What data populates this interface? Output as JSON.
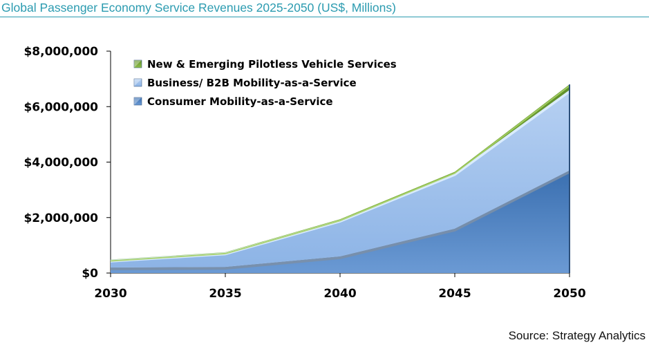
{
  "title": "Global Passenger Economy Service Revenues 2025-2050 (US$, Millions)",
  "source": "Source: Strategy Analytics",
  "chart_data": {
    "type": "area",
    "stacked": true,
    "categories": [
      "2030",
      "2035",
      "2040",
      "2045",
      "2050"
    ],
    "yticks": [
      "$0",
      "$2,000,000",
      "$4,000,000",
      "$6,000,000",
      "$8,000,000"
    ],
    "ylim": [
      0,
      8000000
    ],
    "legend_position": "top-left",
    "series": [
      {
        "name": "Consumer Mobility-as-a-Service",
        "color": "#4f81bd",
        "values": [
          200000,
          220000,
          600000,
          1600000,
          3700000
        ]
      },
      {
        "name": "Business/ B2B Mobility-as-a-Service",
        "color": "#95b9e7",
        "values": [
          280000,
          520000,
          1320000,
          2000000,
          2900000
        ]
      },
      {
        "name": "New & Emerging Pilotless Vehicle Services",
        "color": "#77a33b",
        "values": [
          5000,
          10000,
          20000,
          50000,
          200000
        ]
      }
    ],
    "legend_order": [
      "New & Emerging Pilotless Vehicle Services",
      "Business/ B2B Mobility-as-a-Service",
      "Consumer Mobility-as-a-Service"
    ]
  }
}
